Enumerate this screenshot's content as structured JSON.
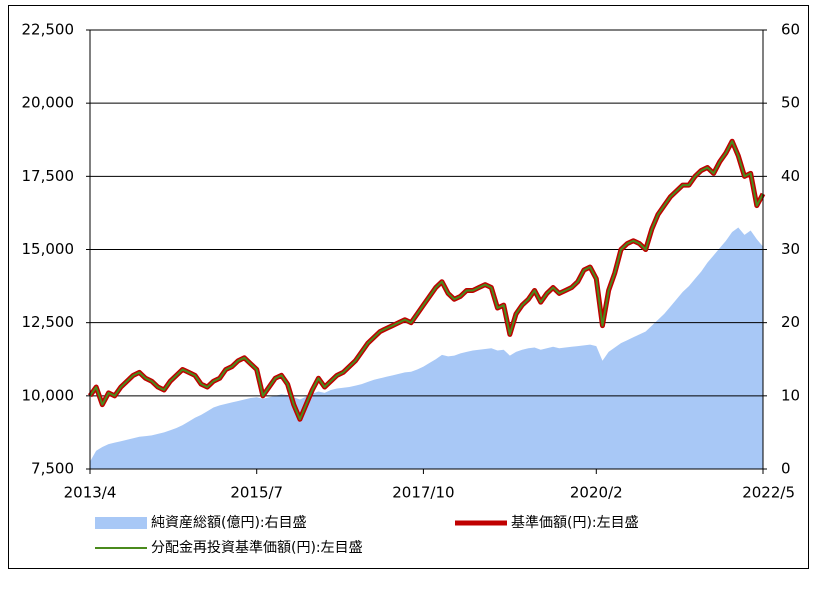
{
  "chart_data": {
    "type": "line",
    "x": [
      "2013/4",
      "2013/5",
      "2013/6",
      "2013/7",
      "2013/8",
      "2013/9",
      "2013/10",
      "2013/11",
      "2013/12",
      "2014/1",
      "2014/2",
      "2014/3",
      "2014/4",
      "2014/5",
      "2014/6",
      "2014/7",
      "2014/8",
      "2014/9",
      "2014/10",
      "2014/11",
      "2014/12",
      "2015/1",
      "2015/2",
      "2015/3",
      "2015/4",
      "2015/5",
      "2015/6",
      "2015/7",
      "2015/8",
      "2015/9",
      "2015/10",
      "2015/11",
      "2015/12",
      "2016/1",
      "2016/2",
      "2016/3",
      "2016/4",
      "2016/5",
      "2016/6",
      "2016/7",
      "2016/8",
      "2016/9",
      "2016/10",
      "2016/11",
      "2016/12",
      "2017/1",
      "2017/2",
      "2017/3",
      "2017/4",
      "2017/5",
      "2017/6",
      "2017/7",
      "2017/8",
      "2017/9",
      "2017/10",
      "2017/11",
      "2017/12",
      "2018/1",
      "2018/2",
      "2018/3",
      "2018/4",
      "2018/5",
      "2018/6",
      "2018/7",
      "2018/8",
      "2018/9",
      "2018/10",
      "2018/11",
      "2018/12",
      "2019/1",
      "2019/2",
      "2019/3",
      "2019/4",
      "2019/5",
      "2019/6",
      "2019/7",
      "2019/8",
      "2019/9",
      "2019/10",
      "2019/11",
      "2019/12",
      "2020/1",
      "2020/2",
      "2020/3",
      "2020/4",
      "2020/5",
      "2020/6",
      "2020/7",
      "2020/8",
      "2020/9",
      "2020/10",
      "2020/11",
      "2020/12",
      "2021/1",
      "2021/2",
      "2021/3",
      "2021/4",
      "2021/5",
      "2021/6",
      "2021/7",
      "2021/8",
      "2021/9",
      "2021/10",
      "2021/11",
      "2021/12",
      "2022/1",
      "2022/2",
      "2022/3",
      "2022/4",
      "2022/5"
    ],
    "xlim": [
      "2013/4",
      "2022/5"
    ],
    "xticks": [
      "2013/4",
      "2015/7",
      "2017/10",
      "2020/2",
      "2022/5"
    ],
    "ylim": [
      7500,
      22500
    ],
    "yticks": [
      {
        "value": 7500,
        "label": "7,500"
      },
      {
        "value": 10000,
        "label": "10,000"
      },
      {
        "value": 12500,
        "label": "12,500"
      },
      {
        "value": 15000,
        "label": "15,000"
      },
      {
        "value": 17500,
        "label": "17,500"
      },
      {
        "value": 20000,
        "label": "20,000"
      },
      {
        "value": 22500,
        "label": "22,500"
      }
    ],
    "y2lim": [
      0,
      60
    ],
    "y2ticks": [
      0,
      10,
      20,
      30,
      40,
      50,
      60
    ],
    "grid": true,
    "series": [
      {
        "name": "純資産総額(億円):右目盛",
        "type": "area",
        "axis": "y2",
        "color": "#a8c8f6",
        "values": [
          1.0,
          2.5,
          3.0,
          3.4,
          3.6,
          3.8,
          4.0,
          4.2,
          4.4,
          4.5,
          4.6,
          4.8,
          5.0,
          5.3,
          5.6,
          6.0,
          6.5,
          7.0,
          7.4,
          7.9,
          8.4,
          8.7,
          8.9,
          9.1,
          9.3,
          9.5,
          9.7,
          9.8,
          9.6,
          9.8,
          10.0,
          10.2,
          10.1,
          9.8,
          9.5,
          9.9,
          10.3,
          10.6,
          10.4,
          10.8,
          11.0,
          11.1,
          11.2,
          11.4,
          11.6,
          11.9,
          12.2,
          12.4,
          12.6,
          12.8,
          13.0,
          13.2,
          13.3,
          13.6,
          14.0,
          14.5,
          15.0,
          15.6,
          15.4,
          15.5,
          15.8,
          16.0,
          16.2,
          16.3,
          16.4,
          16.5,
          16.2,
          16.3,
          15.5,
          16.0,
          16.3,
          16.5,
          16.6,
          16.3,
          16.5,
          16.7,
          16.5,
          16.6,
          16.7,
          16.8,
          16.9,
          17.0,
          16.8,
          14.8,
          16.0,
          16.6,
          17.2,
          17.6,
          18.0,
          18.4,
          18.8,
          19.6,
          20.4,
          21.2,
          22.2,
          23.2,
          24.2,
          25.0,
          26.0,
          27.0,
          28.2,
          29.2,
          30.2,
          31.2,
          32.4,
          33.0,
          32.0,
          32.6,
          31.4,
          30.4
        ]
      },
      {
        "name": "基準価額(円):左目盛",
        "type": "line",
        "color": "#c00000",
        "width": 5,
        "values": [
          10000,
          10300,
          9700,
          10100,
          10000,
          10300,
          10500,
          10700,
          10800,
          10600,
          10500,
          10300,
          10200,
          10500,
          10700,
          10900,
          10800,
          10700,
          10400,
          10300,
          10500,
          10600,
          10900,
          11000,
          11200,
          11300,
          11100,
          10900,
          10000,
          10300,
          10600,
          10700,
          10400,
          9700,
          9200,
          9700,
          10200,
          10600,
          10300,
          10500,
          10700,
          10800,
          11000,
          11200,
          11500,
          11800,
          12000,
          12200,
          12300,
          12400,
          12500,
          12600,
          12500,
          12800,
          13100,
          13400,
          13700,
          13900,
          13500,
          13300,
          13400,
          13600,
          13600,
          13700,
          13800,
          13700,
          13000,
          13100,
          12100,
          12800,
          13100,
          13300,
          13600,
          13200,
          13500,
          13700,
          13500,
          13600,
          13700,
          13900,
          14300,
          14400,
          14000,
          12400,
          13600,
          14200,
          15000,
          15200,
          15300,
          15200,
          15000,
          15700,
          16200,
          16500,
          16800,
          17000,
          17200,
          17200,
          17500,
          17700,
          17800,
          17600,
          18000,
          18300,
          18700,
          18200,
          17500,
          17600,
          16500,
          16900
        ]
      },
      {
        "name": "分配金再投資基準価額(円):左目盛",
        "type": "line",
        "color": "#4a8a1c",
        "width": 2,
        "values": [
          10000,
          10300,
          9700,
          10100,
          10000,
          10300,
          10500,
          10700,
          10800,
          10600,
          10500,
          10300,
          10200,
          10500,
          10700,
          10900,
          10800,
          10700,
          10400,
          10300,
          10500,
          10600,
          10900,
          11000,
          11200,
          11300,
          11100,
          10900,
          10000,
          10300,
          10600,
          10700,
          10400,
          9700,
          9200,
          9700,
          10200,
          10600,
          10300,
          10500,
          10700,
          10800,
          11000,
          11200,
          11500,
          11800,
          12000,
          12200,
          12300,
          12400,
          12500,
          12600,
          12500,
          12800,
          13100,
          13400,
          13700,
          13900,
          13500,
          13300,
          13400,
          13600,
          13600,
          13700,
          13800,
          13700,
          13000,
          13100,
          12100,
          12800,
          13100,
          13300,
          13600,
          13200,
          13500,
          13700,
          13500,
          13600,
          13700,
          13900,
          14300,
          14400,
          14000,
          12400,
          13600,
          14200,
          15000,
          15200,
          15300,
          15200,
          15000,
          15700,
          16200,
          16500,
          16800,
          17000,
          17200,
          17200,
          17500,
          17700,
          17800,
          17600,
          18000,
          18300,
          18700,
          18200,
          17500,
          17600,
          16500,
          16900
        ]
      }
    ]
  }
}
